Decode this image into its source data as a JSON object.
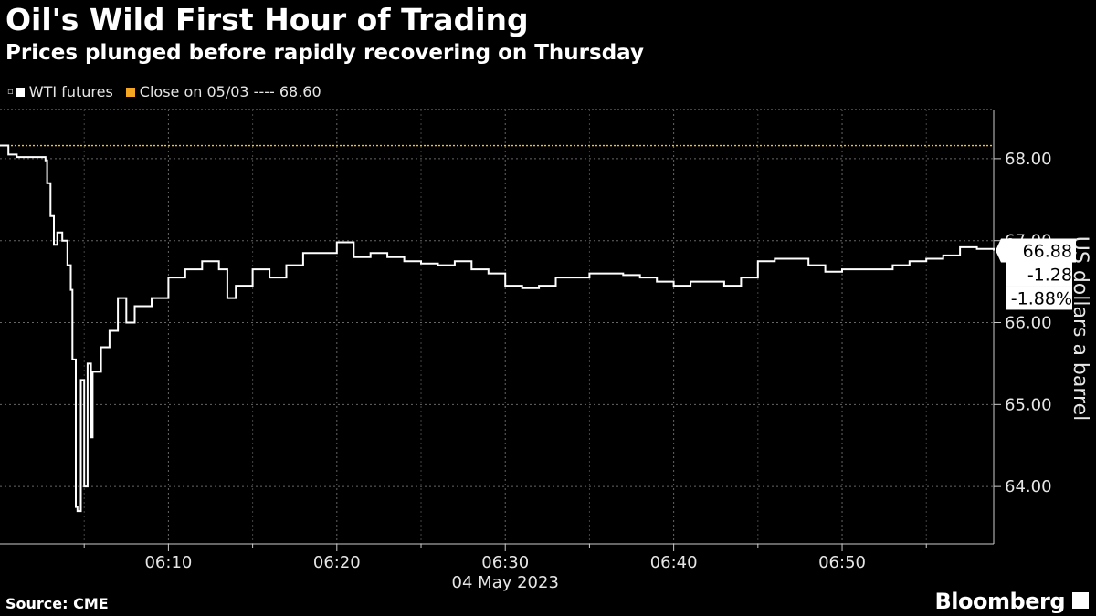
{
  "title": "Oil's Wild First Hour of Trading",
  "subtitle": "Prices plunged before rapidly recovering on Thursday",
  "legend": {
    "series_label": "WTI futures",
    "close_label": "Close on 05/03 ---- 68.60",
    "series_color": "#ffffff",
    "close_color": "#f5a623"
  },
  "source": "Source: CME",
  "brand": "Bloomberg",
  "chart_data": {
    "type": "line",
    "ylabel": "US dollars a barrel",
    "xlabel": "",
    "x_date_label": "04 May 2023",
    "xlim": [
      "06:00",
      "06:59"
    ],
    "ylim": [
      63.3,
      68.6
    ],
    "yticks": [
      64.0,
      65.0,
      66.0,
      67.0,
      68.0
    ],
    "ytick_labels": [
      "64.00",
      "65.00",
      "66.00",
      "67.00",
      "68.00"
    ],
    "xticks": [
      "06:10",
      "06:20",
      "06:30",
      "06:40",
      "06:50"
    ],
    "grid": true,
    "close_value": 68.6,
    "reference_line_value": 68.16,
    "last_value_labels": [
      "66.88",
      "-1.28",
      "-1.88%"
    ],
    "last_value": 66.88,
    "series": [
      {
        "name": "WTI futures",
        "points": [
          [
            "06:00",
            68.16
          ],
          [
            "06:00.5",
            68.05
          ],
          [
            "06:01",
            68.02
          ],
          [
            "06:02",
            68.02
          ],
          [
            "06:02.7",
            67.98
          ],
          [
            "06:02.8",
            67.7
          ],
          [
            "06:03",
            67.3
          ],
          [
            "06:03.2",
            66.95
          ],
          [
            "06:03.4",
            67.1
          ],
          [
            "06:03.7",
            67.0
          ],
          [
            "06:04",
            66.7
          ],
          [
            "06:04.2",
            66.4
          ],
          [
            "06:04.3",
            65.55
          ],
          [
            "06:04.5",
            63.75
          ],
          [
            "06:04.6",
            63.7
          ],
          [
            "06:04.8",
            65.3
          ],
          [
            "06:05",
            64.0
          ],
          [
            "06:05.2",
            65.5
          ],
          [
            "06:05.4",
            64.6
          ],
          [
            "06:05.5",
            65.4
          ],
          [
            "06:06",
            65.7
          ],
          [
            "06:06.5",
            65.9
          ],
          [
            "06:07",
            66.3
          ],
          [
            "06:07.5",
            66.0
          ],
          [
            "06:08",
            66.2
          ],
          [
            "06:09",
            66.3
          ],
          [
            "06:10",
            66.55
          ],
          [
            "06:11",
            66.65
          ],
          [
            "06:12",
            66.75
          ],
          [
            "06:13",
            66.65
          ],
          [
            "06:13.5",
            66.3
          ],
          [
            "06:14",
            66.45
          ],
          [
            "06:15",
            66.65
          ],
          [
            "06:16",
            66.55
          ],
          [
            "06:17",
            66.7
          ],
          [
            "06:18",
            66.85
          ],
          [
            "06:19",
            66.85
          ],
          [
            "06:20",
            66.98
          ],
          [
            "06:21",
            66.8
          ],
          [
            "06:22",
            66.85
          ],
          [
            "06:23",
            66.8
          ],
          [
            "06:24",
            66.75
          ],
          [
            "06:25",
            66.72
          ],
          [
            "06:26",
            66.7
          ],
          [
            "06:27",
            66.75
          ],
          [
            "06:28",
            66.65
          ],
          [
            "06:29",
            66.6
          ],
          [
            "06:30",
            66.45
          ],
          [
            "06:31",
            66.42
          ],
          [
            "06:32",
            66.45
          ],
          [
            "06:33",
            66.55
          ],
          [
            "06:34",
            66.55
          ],
          [
            "06:35",
            66.6
          ],
          [
            "06:36",
            66.6
          ],
          [
            "06:37",
            66.58
          ],
          [
            "06:38",
            66.55
          ],
          [
            "06:39",
            66.5
          ],
          [
            "06:40",
            66.45
          ],
          [
            "06:41",
            66.5
          ],
          [
            "06:42",
            66.5
          ],
          [
            "06:43",
            66.45
          ],
          [
            "06:44",
            66.55
          ],
          [
            "06:45",
            66.75
          ],
          [
            "06:46",
            66.78
          ],
          [
            "06:47",
            66.78
          ],
          [
            "06:48",
            66.7
          ],
          [
            "06:49",
            66.62
          ],
          [
            "06:50",
            66.65
          ],
          [
            "06:51",
            66.65
          ],
          [
            "06:52",
            66.65
          ],
          [
            "06:53",
            66.7
          ],
          [
            "06:54",
            66.75
          ],
          [
            "06:55",
            66.78
          ],
          [
            "06:56",
            66.82
          ],
          [
            "06:57",
            66.92
          ],
          [
            "06:58",
            66.9
          ],
          [
            "06:59",
            66.88
          ]
        ]
      }
    ]
  }
}
